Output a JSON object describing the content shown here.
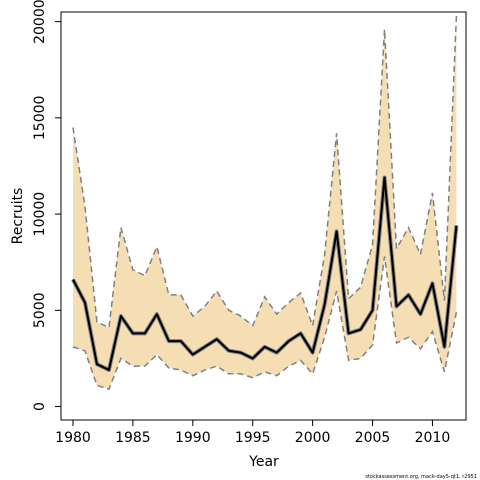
{
  "chart_data": {
    "type": "line",
    "xlabel": "Year",
    "ylabel": "Recruits",
    "xlim": [
      1979,
      2012.8
    ],
    "ylim": [
      -700,
      20500
    ],
    "x_ticks": [
      1980,
      1985,
      1990,
      1995,
      2000,
      2005,
      2010
    ],
    "y_ticks": [
      0,
      5000,
      10000,
      15000,
      20000
    ],
    "x_tick_labels": [
      "1980",
      "1985",
      "1990",
      "1995",
      "2000",
      "2005",
      "2010"
    ],
    "y_tick_labels": [
      "0",
      "5000",
      "10000",
      "15000",
      "20000"
    ],
    "x": [
      1980,
      1981,
      1982,
      1983,
      1984,
      1985,
      1986,
      1987,
      1988,
      1989,
      1990,
      1991,
      1992,
      1993,
      1994,
      1995,
      1996,
      1997,
      1998,
      1999,
      2000,
      2001,
      2002,
      2003,
      2004,
      2005,
      2006,
      2007,
      2008,
      2009,
      2010,
      2011,
      2012
    ],
    "series": [
      {
        "values": [
          6600,
          5400,
          2200,
          1900,
          4700,
          3800,
          3800,
          4800,
          3400,
          3400,
          2700,
          3100,
          3500,
          2900,
          2800,
          2500,
          3100,
          2800,
          3400,
          3800,
          2800,
          5300,
          9100,
          3800,
          4000,
          5000,
          11900,
          5200,
          5800,
          4800,
          6400,
          3100,
          9400
        ]
      },
      {
        "values": [
          14500,
          10400,
          4400,
          4100,
          9300,
          7100,
          6800,
          8300,
          5800,
          5800,
          4700,
          5200,
          6000,
          5000,
          4700,
          4200,
          5700,
          4800,
          5400,
          5900,
          4200,
          7900,
          14200,
          5600,
          6200,
          8400,
          19600,
          8200,
          9300,
          7900,
          11100,
          5500,
          20300
        ]
      },
      {
        "values": [
          3100,
          2900,
          1100,
          900,
          2500,
          2100,
          2100,
          2700,
          2000,
          1900,
          1600,
          1900,
          2100,
          1700,
          1700,
          1500,
          1800,
          1600,
          2100,
          2400,
          1700,
          3600,
          6000,
          2400,
          2500,
          3200,
          7800,
          3300,
          3600,
          3000,
          3900,
          1800,
          4900
        ]
      }
    ],
    "colors": {
      "band_fill": "#f5deb3",
      "bound_line": "#808080",
      "estimate_line": "#000000",
      "estimate_outline": "#808080"
    },
    "grid": false,
    "legend": "none",
    "footnote": "stockassessment.org, mack-day5-qt1, r2951"
  }
}
